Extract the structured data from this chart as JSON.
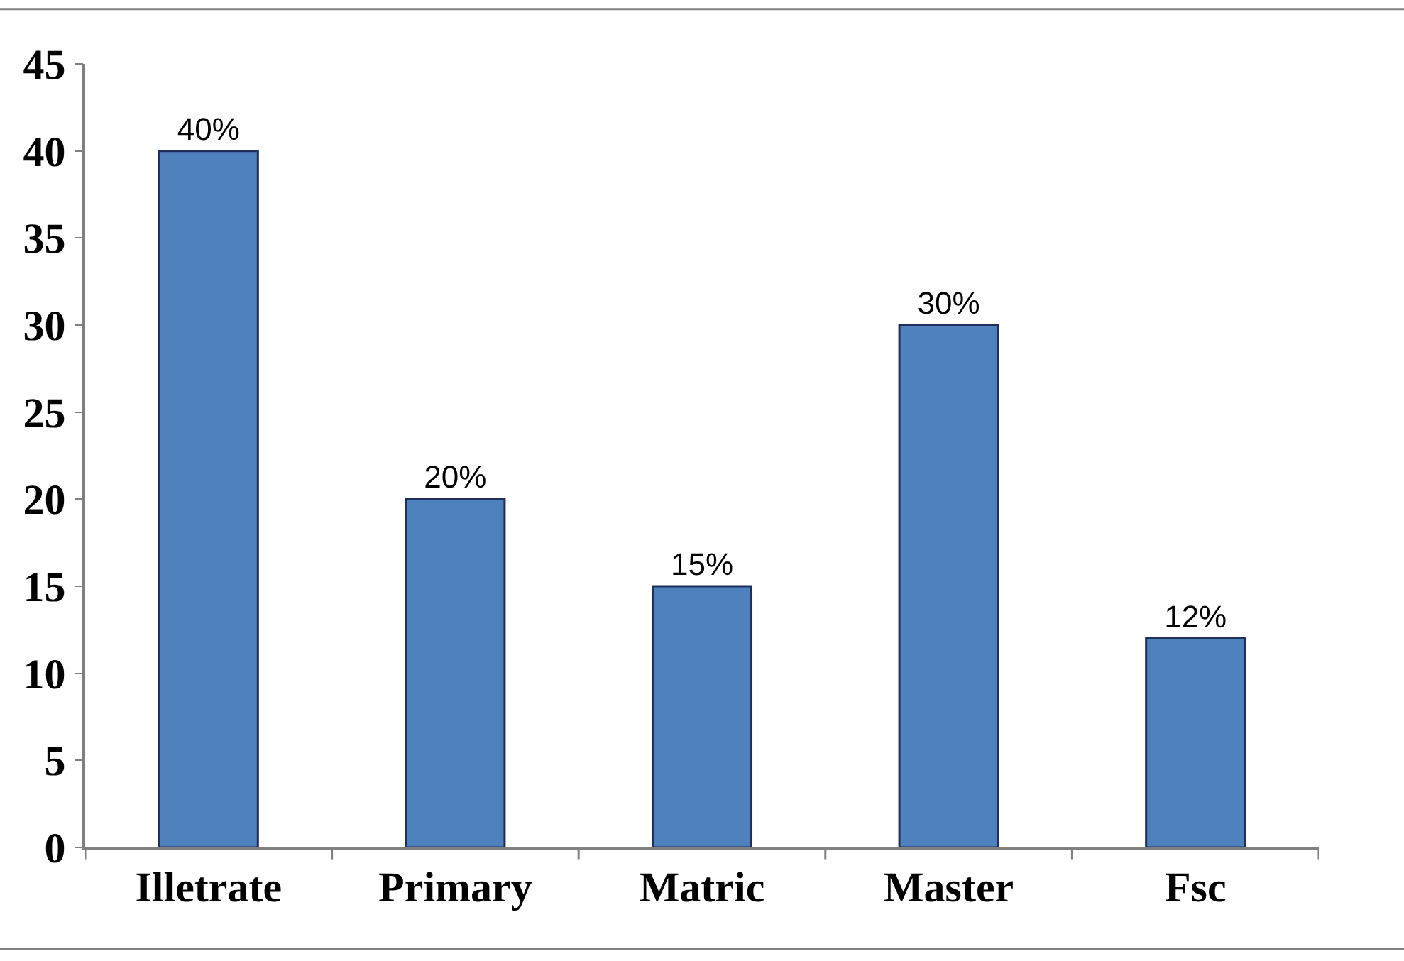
{
  "chart_data": {
    "type": "bar",
    "categories": [
      "Illetrate",
      "Primary",
      "Matric",
      "Master",
      "Fsc"
    ],
    "values": [
      40,
      20,
      15,
      30,
      12
    ],
    "value_labels": [
      "40%",
      "20%",
      "15%",
      "30%",
      "12%"
    ],
    "color": "#4f81bd",
    "ylim": [
      0,
      45
    ],
    "yticks": [
      0,
      5,
      10,
      15,
      20,
      25,
      30,
      35,
      40,
      45
    ]
  }
}
